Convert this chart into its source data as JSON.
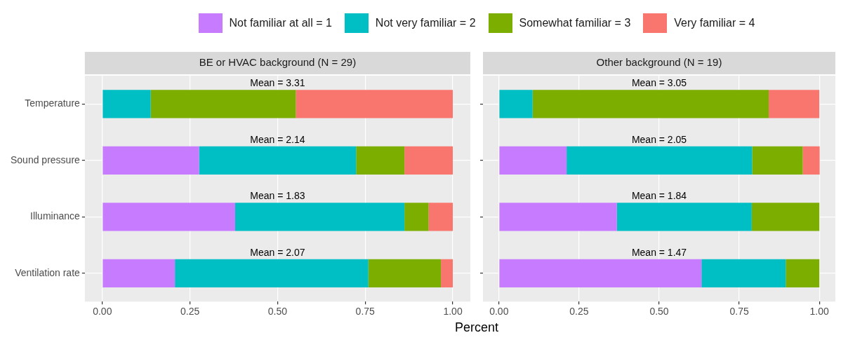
{
  "chart_data": [
    {
      "type": "bar",
      "orientation": "horizontal",
      "stacked": true,
      "title": "BE or HVAC background (N = 29)",
      "xlabel": "Percent",
      "legend": "top",
      "grid": true,
      "categories": [
        "Temperature",
        "Sound pressure",
        "Illuminance",
        "Ventilation rate"
      ],
      "xlim": [
        -0.05,
        1.05
      ],
      "xticks": [
        {
          "value": 0,
          "label": "0.00"
        },
        {
          "value": 0.25,
          "label": "0.25"
        },
        {
          "value": 0.5,
          "label": "0.50"
        },
        {
          "value": 0.75,
          "label": "0.75"
        },
        {
          "value": 1,
          "label": "1.00"
        }
      ],
      "series": [
        {
          "name": "Not familiar at all = 1",
          "color": "#c77cff",
          "values": [
            0,
            0.276,
            0.379,
            0.207
          ]
        },
        {
          "name": "Not very familiar = 2",
          "color": "#00bfc4",
          "values": [
            0.138,
            0.448,
            0.483,
            0.552
          ]
        },
        {
          "name": "Somewhat familiar = 3",
          "color": "#7cae00",
          "values": [
            0.414,
            0.138,
            0.069,
            0.207
          ]
        },
        {
          "name": "Very familiar = 4",
          "color": "#f8766d",
          "values": [
            0.448,
            0.138,
            0.069,
            0.034
          ]
        }
      ],
      "annotations": [
        "Mean = 3.31",
        "Mean = 2.14",
        "Mean = 1.83",
        "Mean = 2.07"
      ]
    },
    {
      "type": "bar",
      "orientation": "horizontal",
      "stacked": true,
      "title": "Other background (N = 19)",
      "grid": true,
      "tick_labels": "x",
      "categories": [
        "Temperature",
        "Sound pressure",
        "Illuminance",
        "Ventilation rate"
      ],
      "xlim": [
        -0.05,
        1.05
      ],
      "xticks": [
        {
          "value": 0,
          "label": "0.00"
        },
        {
          "value": 0.25,
          "label": "0.25"
        },
        {
          "value": 0.5,
          "label": "0.50"
        },
        {
          "value": 0.75,
          "label": "0.75"
        },
        {
          "value": 1,
          "label": "1.00"
        }
      ],
      "series": [
        {
          "name": "Not familiar at all = 1",
          "color": "#c77cff",
          "values": [
            0,
            0.211,
            0.368,
            0.632
          ]
        },
        {
          "name": "Not very familiar = 2",
          "color": "#00bfc4",
          "values": [
            0.105,
            0.579,
            0.421,
            0.263
          ]
        },
        {
          "name": "Somewhat familiar = 3",
          "color": "#7cae00",
          "values": [
            0.737,
            0.158,
            0.211,
            0.105
          ]
        },
        {
          "name": "Very familiar = 4",
          "color": "#f8766d",
          "values": [
            0.158,
            0.053,
            0,
            0
          ]
        }
      ],
      "annotations": [
        "Mean = 3.05",
        "Mean = 2.05",
        "Mean = 1.84",
        "Mean = 1.47"
      ]
    }
  ]
}
